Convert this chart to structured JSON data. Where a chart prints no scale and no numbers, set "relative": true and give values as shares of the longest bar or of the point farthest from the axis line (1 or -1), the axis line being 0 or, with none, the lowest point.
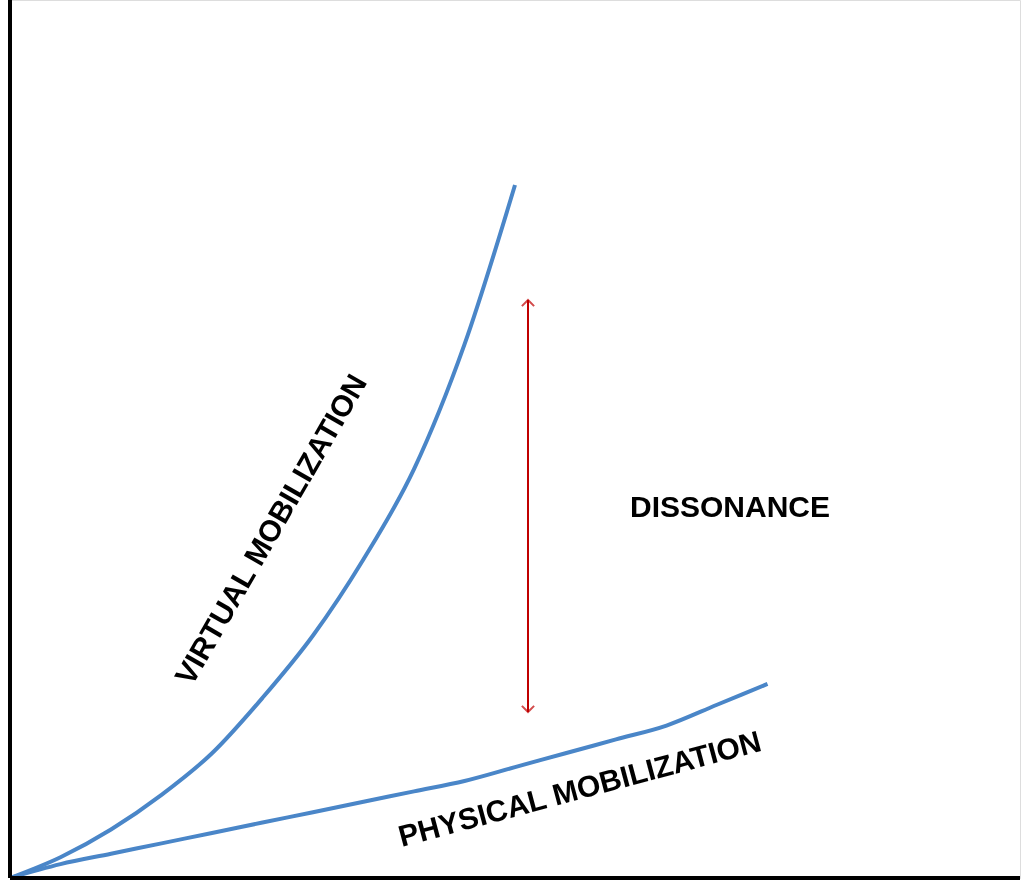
{
  "chart_data": {
    "type": "line",
    "relative": true,
    "line_style": "solid",
    "marker": "none",
    "categories": [
      null,
      null,
      null,
      null,
      null,
      null,
      null,
      null,
      null,
      null,
      null,
      null,
      null,
      null,
      null,
      null,
      null,
      null,
      null,
      null,
      null
    ],
    "series": [
      {
        "name": "VIRTUAL MOBILIZATION",
        "color": "#4a86c8",
        "values": [
          0,
          0.03,
          0.07,
          0.12,
          0.18,
          0.26,
          0.35,
          0.46,
          0.59,
          0.77,
          1.0,
          null,
          null,
          null,
          null,
          null,
          null,
          null,
          null,
          null,
          null
        ]
      },
      {
        "name": "PHYSICAL MOBILIZATION",
        "color": "#4a86c8",
        "values": [
          0,
          0.02,
          0.035,
          0.05,
          0.065,
          0.08,
          0.095,
          0.11,
          0.125,
          0.14,
          0.16,
          0.18,
          0.2,
          0.22,
          0.25,
          0.28,
          null,
          null,
          null,
          null,
          null
        ]
      }
    ],
    "annotations": [
      "DISSONANCE"
    ]
  }
}
